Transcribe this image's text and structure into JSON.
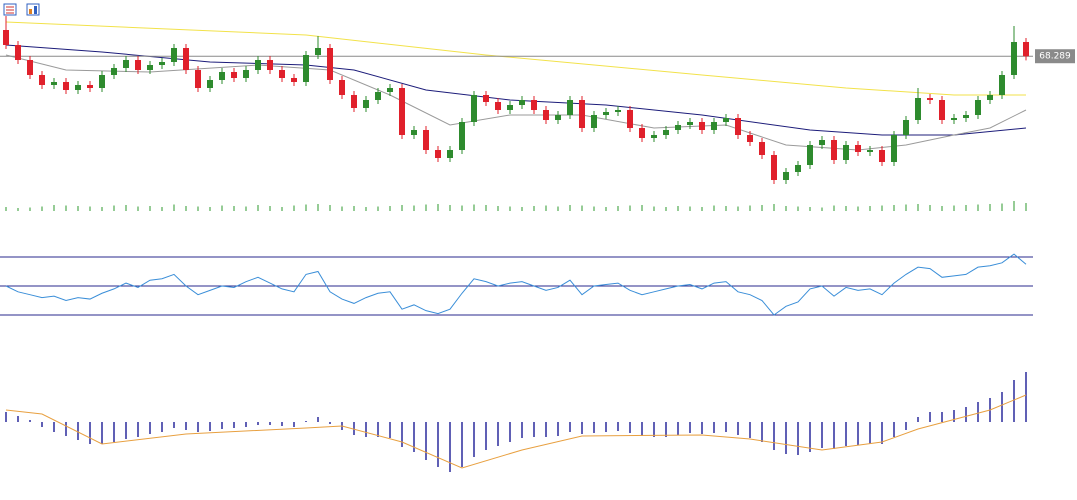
{
  "chart_data": [
    {
      "type": "candlestick",
      "ylim": [
        61.6,
        71.1
      ],
      "up_color": "#2e8b2e",
      "down_color": "#e0202b",
      "open": [
        69.6,
        68.85,
        68.1,
        67.35,
        66.85,
        67.0,
        66.6,
        66.85,
        66.7,
        67.35,
        67.7,
        68.1,
        67.6,
        67.85,
        68.0,
        68.7,
        67.6,
        66.7,
        67.1,
        67.5,
        67.2,
        67.6,
        68.1,
        67.6,
        67.2,
        67.0,
        68.35,
        68.7,
        67.1,
        66.35,
        65.7,
        66.1,
        66.5,
        66.7,
        64.35,
        64.6,
        63.6,
        63.2,
        63.6,
        65.0,
        66.35,
        66.0,
        65.6,
        65.85,
        66.1,
        65.6,
        65.1,
        65.35,
        66.1,
        64.7,
        65.35,
        65.5,
        65.6,
        64.7,
        64.2,
        64.35,
        64.6,
        64.85,
        65.0,
        64.6,
        65.0,
        65.2,
        64.35,
        64.0,
        63.35,
        62.1,
        62.5,
        62.85,
        63.85,
        64.1,
        63.1,
        63.85,
        63.5,
        63.6,
        63.0,
        64.35,
        65.1,
        66.2,
        66.1,
        65.1,
        65.2,
        65.35,
        66.1,
        66.35,
        67.35,
        69.0
      ],
      "high": [
        70.3,
        69.05,
        68.3,
        67.55,
        67.2,
        67.2,
        67.05,
        67.05,
        67.55,
        67.9,
        68.3,
        68.3,
        68.05,
        68.2,
        68.9,
        68.9,
        67.8,
        67.3,
        67.7,
        67.7,
        67.8,
        68.3,
        68.3,
        67.8,
        67.4,
        68.55,
        69.3,
        68.9,
        67.3,
        66.55,
        66.3,
        66.7,
        66.9,
        66.9,
        64.8,
        64.8,
        63.8,
        63.8,
        65.2,
        66.55,
        66.55,
        66.2,
        66.05,
        66.3,
        66.3,
        65.8,
        65.55,
        66.3,
        66.3,
        65.55,
        65.7,
        65.8,
        65.8,
        64.9,
        64.55,
        64.8,
        65.05,
        65.2,
        65.2,
        65.2,
        65.4,
        65.4,
        64.55,
        64.2,
        63.55,
        62.7,
        63.05,
        64.05,
        64.3,
        64.3,
        64.05,
        64.05,
        63.8,
        63.8,
        64.55,
        65.3,
        66.7,
        66.4,
        66.3,
        65.4,
        65.55,
        66.3,
        66.55,
        67.55,
        69.8,
        69.2
      ],
      "low": [
        68.65,
        67.9,
        67.15,
        66.65,
        66.65,
        66.4,
        66.4,
        66.5,
        66.5,
        67.15,
        67.5,
        67.4,
        67.4,
        67.65,
        67.8,
        67.4,
        66.5,
        66.5,
        66.9,
        67.0,
        67.0,
        67.4,
        67.4,
        67.0,
        66.8,
        66.8,
        68.15,
        66.9,
        66.15,
        65.5,
        65.5,
        65.9,
        66.3,
        64.15,
        64.15,
        63.4,
        63.0,
        63.0,
        63.4,
        64.8,
        65.8,
        65.4,
        65.4,
        65.65,
        65.4,
        64.9,
        64.9,
        65.15,
        64.5,
        64.5,
        65.15,
        65.3,
        64.5,
        64.0,
        64.0,
        64.15,
        64.4,
        64.65,
        64.4,
        64.4,
        64.8,
        64.15,
        63.8,
        63.15,
        61.9,
        61.9,
        62.3,
        62.65,
        63.65,
        62.9,
        62.9,
        63.3,
        63.3,
        62.8,
        62.8,
        64.15,
        64.9,
        65.9,
        64.9,
        64.9,
        65.0,
        65.15,
        65.9,
        66.15,
        67.15,
        68.08
      ],
      "close": [
        68.85,
        68.1,
        67.35,
        66.85,
        67.0,
        66.6,
        66.85,
        66.7,
        67.35,
        67.7,
        68.1,
        67.6,
        67.85,
        68.0,
        68.7,
        67.6,
        66.7,
        67.1,
        67.5,
        67.2,
        67.6,
        68.1,
        67.6,
        67.2,
        67.0,
        68.35,
        68.7,
        67.1,
        66.35,
        65.7,
        66.1,
        66.5,
        66.7,
        64.35,
        64.6,
        63.6,
        63.2,
        63.6,
        65.0,
        66.35,
        66.0,
        65.6,
        65.85,
        66.1,
        65.6,
        65.1,
        65.35,
        66.1,
        64.7,
        65.35,
        65.5,
        65.6,
        64.7,
        64.2,
        64.35,
        64.6,
        64.85,
        65.0,
        64.6,
        65.0,
        65.2,
        64.35,
        64.0,
        63.35,
        62.1,
        62.5,
        62.85,
        63.85,
        64.1,
        63.1,
        63.85,
        63.5,
        63.6,
        63.0,
        64.35,
        65.1,
        66.2,
        66.1,
        65.1,
        65.2,
        65.35,
        66.1,
        66.35,
        67.35,
        69.0,
        68.289
      ],
      "overlays": [
        {
          "color": "#f2e24a",
          "x": [
            0,
            25,
            40,
            58,
            70,
            79,
            85
          ],
          "values": [
            70.0,
            69.35,
            68.35,
            67.35,
            66.7,
            66.35,
            66.35
          ]
        },
        {
          "color": "#1c1c7a",
          "x": [
            0,
            8,
            17,
            25,
            29,
            35,
            42,
            50,
            58,
            67,
            73,
            79,
            85
          ],
          "values": [
            68.85,
            68.5,
            68.0,
            67.85,
            67.6,
            66.6,
            66.1,
            65.85,
            65.35,
            64.6,
            64.35,
            64.35,
            64.7
          ]
        },
        {
          "color": "#9a9a9a",
          "x": [
            0,
            5,
            12,
            21,
            27,
            32,
            37,
            42,
            48,
            54,
            60,
            65,
            71,
            75,
            79,
            82,
            85
          ],
          "values": [
            68.35,
            67.6,
            67.5,
            67.85,
            67.6,
            66.35,
            64.85,
            65.35,
            65.35,
            64.7,
            64.85,
            63.85,
            63.6,
            63.85,
            64.35,
            64.7,
            65.6
          ]
        }
      ],
      "volume_color": "#2e9a2e",
      "volume_ylim": [
        0,
        400
      ],
      "volume": [
        40,
        30,
        35,
        45,
        60,
        55,
        50,
        45,
        40,
        55,
        60,
        45,
        50,
        40,
        65,
        50,
        45,
        40,
        55,
        50,
        45,
        60,
        50,
        40,
        55,
        65,
        70,
        60,
        45,
        50,
        40,
        45,
        50,
        60,
        55,
        65,
        70,
        60,
        55,
        65,
        60,
        50,
        45,
        40,
        50,
        55,
        45,
        60,
        55,
        45,
        40,
        50,
        55,
        60,
        45,
        40,
        50,
        45,
        40,
        55,
        50,
        45,
        55,
        60,
        70,
        50,
        45,
        40,
        35,
        55,
        50,
        45,
        50,
        55,
        60,
        65,
        70,
        60,
        50,
        55,
        60,
        65,
        70,
        75,
        100,
        80
      ]
    },
    {
      "type": "line",
      "ylim": [
        0,
        100
      ],
      "color": "#3a8ed8",
      "hlines": [
        70,
        50,
        30
      ],
      "hline_color": "#2a2a8c",
      "values": [
        50,
        46,
        44,
        42,
        43,
        40,
        42,
        41,
        45,
        48,
        52,
        49,
        54,
        55,
        58,
        50,
        44,
        47,
        50,
        49,
        53,
        56,
        52,
        48,
        46,
        58,
        60,
        46,
        41,
        38,
        42,
        45,
        46,
        34,
        37,
        33,
        31,
        34,
        45,
        55,
        53,
        50,
        52,
        53,
        50,
        47,
        49,
        54,
        44,
        50,
        51,
        52,
        47,
        44,
        46,
        48,
        50,
        51,
        48,
        52,
        53,
        46,
        44,
        40,
        30,
        36,
        39,
        48,
        50,
        43,
        49,
        47,
        48,
        44,
        52,
        58,
        63,
        62,
        56,
        57,
        58,
        63,
        64,
        66,
        72,
        65
      ]
    },
    {
      "type": "macd",
      "ylim": [
        -0.6,
        0.6
      ],
      "bar_color": "#2a2a9c",
      "signal_color": "#e8a040",
      "values": [
        0.1,
        0.06,
        0.02,
        -0.05,
        -0.1,
        -0.14,
        -0.18,
        -0.22,
        -0.22,
        -0.2,
        -0.17,
        -0.15,
        -0.12,
        -0.1,
        -0.06,
        -0.08,
        -0.1,
        -0.09,
        -0.07,
        -0.06,
        -0.05,
        -0.03,
        -0.03,
        -0.04,
        -0.05,
        0.01,
        0.05,
        -0.02,
        -0.08,
        -0.13,
        -0.15,
        -0.15,
        -0.16,
        -0.25,
        -0.3,
        -0.38,
        -0.45,
        -0.5,
        -0.45,
        -0.35,
        -0.28,
        -0.24,
        -0.2,
        -0.16,
        -0.15,
        -0.15,
        -0.14,
        -0.1,
        -0.12,
        -0.11,
        -0.1,
        -0.09,
        -0.11,
        -0.14,
        -0.15,
        -0.15,
        -0.13,
        -0.11,
        -0.12,
        -0.11,
        -0.1,
        -0.13,
        -0.16,
        -0.2,
        -0.28,
        -0.32,
        -0.33,
        -0.3,
        -0.26,
        -0.27,
        -0.24,
        -0.23,
        -0.22,
        -0.22,
        -0.15,
        -0.08,
        0.05,
        0.1,
        0.1,
        0.12,
        0.15,
        0.2,
        0.24,
        0.3,
        0.42,
        0.5
      ],
      "signal": {
        "x": [
          0,
          3,
          8,
          15,
          25,
          28,
          33,
          38,
          43,
          48,
          58,
          62,
          68,
          73,
          76,
          82,
          85
        ],
        "values": [
          0.12,
          0.08,
          -0.22,
          -0.12,
          -0.06,
          -0.04,
          -0.2,
          -0.46,
          -0.28,
          -0.14,
          -0.13,
          -0.17,
          -0.28,
          -0.2,
          -0.07,
          0.12,
          0.27
        ]
      }
    }
  ]
}
